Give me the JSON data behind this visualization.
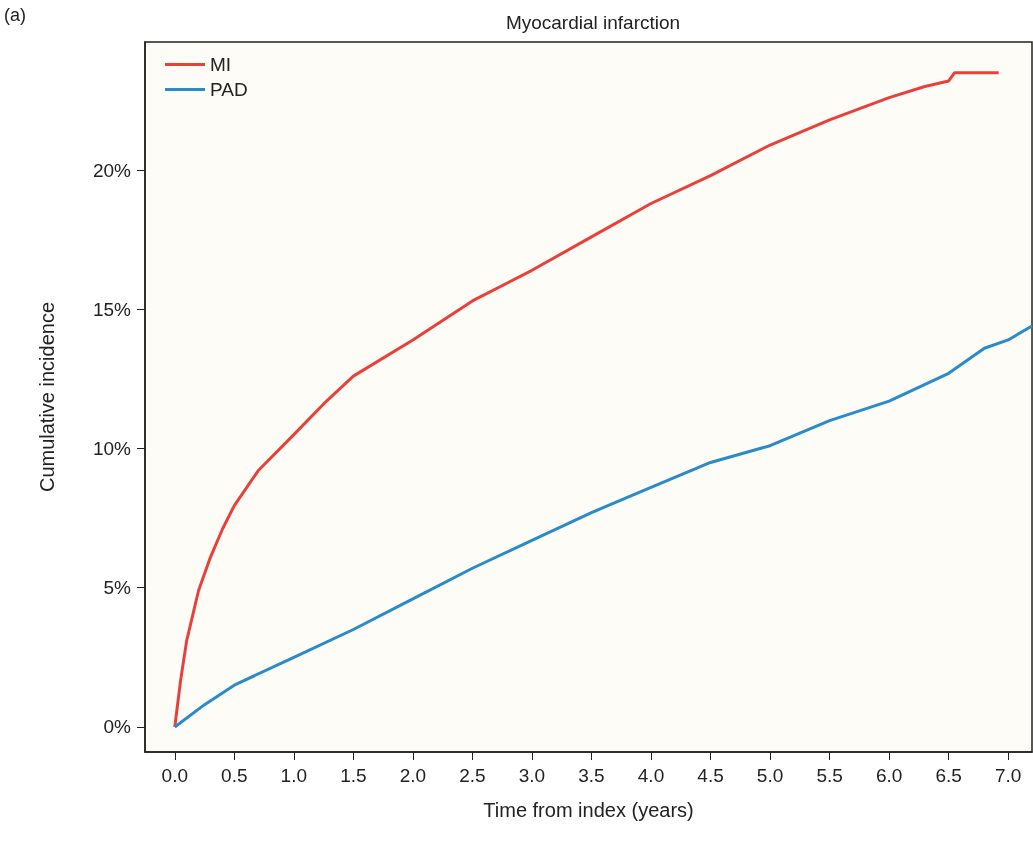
{
  "chart_data": {
    "type": "line",
    "title": "Myocardial infarction",
    "xlabel": "Time from index (years)",
    "ylabel": "Cumulative incidence",
    "annotations": [
      "(a)"
    ],
    "xlim": [
      -0.25,
      7.2
    ],
    "xticks": [
      {
        "value": 0,
        "label": "0.0"
      },
      {
        "value": 0.5,
        "label": "0.5"
      },
      {
        "value": 1,
        "label": "1.0"
      },
      {
        "value": 1.5,
        "label": "1.5"
      },
      {
        "value": 2,
        "label": "2.0"
      },
      {
        "value": 2.5,
        "label": "2.5"
      },
      {
        "value": 3,
        "label": "3.0"
      },
      {
        "value": 3.5,
        "label": "3.5"
      },
      {
        "value": 4,
        "label": "4.0"
      },
      {
        "value": 4.5,
        "label": "4.5"
      },
      {
        "value": 5,
        "label": "5.0"
      },
      {
        "value": 5.5,
        "label": "5.5"
      },
      {
        "value": 6,
        "label": "6.0"
      },
      {
        "value": 6.5,
        "label": "6.5"
      },
      {
        "value": 7,
        "label": "7.0"
      }
    ],
    "ylim": [
      -0.9,
      24.6
    ],
    "yticks": [
      {
        "value": 0,
        "label": "0%"
      },
      {
        "value": 5,
        "label": "5%"
      },
      {
        "value": 10,
        "label": "10%"
      },
      {
        "value": 15,
        "label": "15%"
      },
      {
        "value": 20,
        "label": "20%"
      }
    ],
    "grid": false,
    "legend": "top left",
    "marker": "none",
    "line_style": "solid",
    "series": [
      {
        "name": "MI",
        "color": "#e8413c",
        "x": [
          0,
          0.05,
          0.1,
          0.2,
          0.3,
          0.4,
          0.5,
          0.7,
          1,
          1.25,
          1.5,
          2,
          2.5,
          3,
          3.5,
          4,
          4.5,
          5,
          5.5,
          6,
          6.3,
          6.5,
          6.55,
          6.92
        ],
        "values": [
          0,
          1.7,
          3.1,
          4.9,
          6.1,
          7.1,
          7.95,
          9.2,
          10.5,
          11.6,
          12.6,
          13.9,
          15.3,
          16.4,
          17.6,
          18.8,
          19.8,
          20.9,
          21.8,
          22.6,
          23.0,
          23.2,
          23.5,
          23.5
        ]
      },
      {
        "name": "PAD",
        "color": "#2a8bc8",
        "x": [
          0,
          0.25,
          0.5,
          1,
          1.5,
          2,
          2.5,
          3,
          3.5,
          4,
          4.5,
          5,
          5.5,
          6,
          6.5,
          6.8,
          7,
          7.2
        ],
        "values": [
          0,
          0.8,
          1.5,
          2.5,
          3.5,
          4.6,
          5.7,
          6.7,
          7.7,
          8.6,
          9.5,
          10.1,
          11.0,
          11.7,
          12.7,
          13.6,
          13.9,
          14.4
        ]
      }
    ]
  }
}
